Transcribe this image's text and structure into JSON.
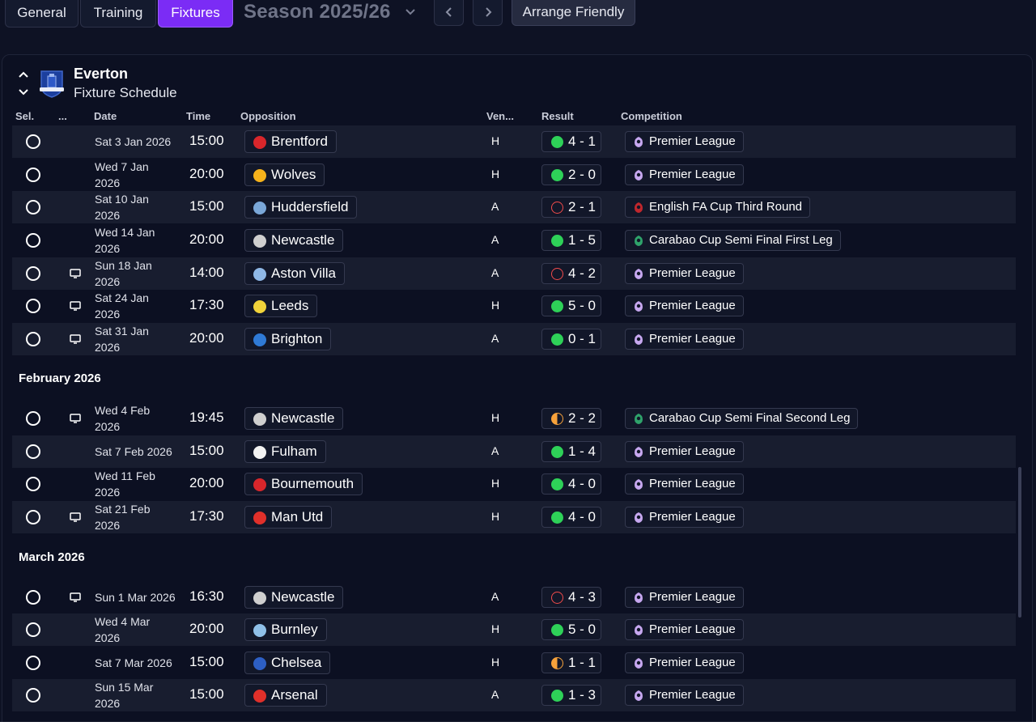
{
  "tabs": [
    {
      "label": "General"
    },
    {
      "label": "Training"
    },
    {
      "label": "Fixtures"
    }
  ],
  "season": {
    "label": "Season 2025/26"
  },
  "arrange_label": "Arrange Friendly",
  "club": {
    "name": "Everton",
    "subtitle": "Fixture Schedule"
  },
  "columns": {
    "sel": "Sel.",
    "more": "...",
    "date": "Date",
    "time": "Time",
    "opposition": "Opposition",
    "venue": "Ven...",
    "result": "Result",
    "competition": "Competition"
  },
  "months": {
    "feb": "February 2026",
    "mar": "March 2026"
  },
  "fixtures": [
    {
      "date1": "Sat 3 Jan 2026",
      "date2": "",
      "time": "15:00",
      "opp": "Brentford",
      "venue": "H",
      "result": "4 - 1",
      "outcome": "win",
      "comp": "Premier League",
      "tv": false,
      "badge": "#d8262b"
    },
    {
      "date1": "Wed 7 Jan",
      "date2": "2026",
      "time": "20:00",
      "opp": "Wolves",
      "venue": "H",
      "result": "2 - 0",
      "outcome": "win",
      "comp": "Premier League",
      "tv": false,
      "badge": "#f6b21b"
    },
    {
      "date1": "Sat 10 Jan",
      "date2": "2026",
      "time": "15:00",
      "opp": "Huddersfield",
      "venue": "A",
      "result": "2 - 1",
      "outcome": "loss",
      "comp": "English FA Cup Third Round",
      "tv": false,
      "badge": "#7aa7d8"
    },
    {
      "date1": "Wed 14 Jan",
      "date2": "2026",
      "time": "20:00",
      "opp": "Newcastle",
      "venue": "A",
      "result": "1 - 5",
      "outcome": "win",
      "comp": "Carabao Cup Semi Final First Leg",
      "tv": false,
      "badge": "#cfcfcf"
    },
    {
      "date1": "Sun 18 Jan",
      "date2": "2026",
      "time": "14:00",
      "opp": "Aston Villa",
      "venue": "A",
      "result": "4 - 2",
      "outcome": "loss",
      "comp": "Premier League",
      "tv": true,
      "badge": "#8fb8e6"
    },
    {
      "date1": "Sat 24 Jan",
      "date2": "2026",
      "time": "17:30",
      "opp": "Leeds",
      "venue": "H",
      "result": "5 - 0",
      "outcome": "win",
      "comp": "Premier League",
      "tv": true,
      "badge": "#f1d33a"
    },
    {
      "date1": "Sat 31 Jan",
      "date2": "2026",
      "time": "20:00",
      "opp": "Brighton",
      "venue": "A",
      "result": "0 - 1",
      "outcome": "win",
      "comp": "Premier League",
      "tv": true,
      "badge": "#2f7ad6"
    },
    {
      "date1": "Wed 4 Feb",
      "date2": "2026",
      "time": "19:45",
      "opp": "Newcastle",
      "venue": "H",
      "result": "2 - 2",
      "outcome": "draw",
      "comp": "Carabao Cup Semi Final Second Leg",
      "tv": true,
      "badge": "#cfcfcf"
    },
    {
      "date1": "Sat 7 Feb 2026",
      "date2": "",
      "time": "15:00",
      "opp": "Fulham",
      "venue": "A",
      "result": "1 - 4",
      "outcome": "win",
      "comp": "Premier League",
      "tv": false,
      "badge": "#f2f2f2"
    },
    {
      "date1": "Wed 11 Feb",
      "date2": "2026",
      "time": "20:00",
      "opp": "Bournemouth",
      "venue": "H",
      "result": "4 - 0",
      "outcome": "win",
      "comp": "Premier League",
      "tv": false,
      "badge": "#d8262b"
    },
    {
      "date1": "Sat 21 Feb",
      "date2": "2026",
      "time": "17:30",
      "opp": "Man Utd",
      "venue": "H",
      "result": "4 - 0",
      "outcome": "win",
      "comp": "Premier League",
      "tv": true,
      "badge": "#e0302a"
    },
    {
      "date1": "Sun 1 Mar 2026",
      "date2": "",
      "time": "16:30",
      "opp": "Newcastle",
      "venue": "A",
      "result": "4 - 3",
      "outcome": "loss",
      "comp": "Premier League",
      "tv": true,
      "badge": "#cfcfcf"
    },
    {
      "date1": "Wed 4 Mar",
      "date2": "2026",
      "time": "20:00",
      "opp": "Burnley",
      "venue": "H",
      "result": "5 - 0",
      "outcome": "win",
      "comp": "Premier League",
      "tv": false,
      "badge": "#8fc0e8"
    },
    {
      "date1": "Sat 7 Mar 2026",
      "date2": "",
      "time": "15:00",
      "opp": "Chelsea",
      "venue": "H",
      "result": "1 - 1",
      "outcome": "draw",
      "comp": "Premier League",
      "tv": false,
      "badge": "#2d5fc4"
    },
    {
      "date1": "Sun 15 Mar",
      "date2": "2026",
      "time": "15:00",
      "opp": "Arsenal",
      "venue": "A",
      "result": "1 - 3",
      "outcome": "win",
      "comp": "Premier League",
      "tv": false,
      "badge": "#e0302a"
    }
  ],
  "colors": {
    "accent": "#7b2cf5",
    "win": "#2ed158",
    "loss": "#f24b4b",
    "draw": "#f7a23b",
    "premier_league": "#c7a8f0",
    "fa_cup": "#c0272d",
    "carabao": "#2fa36b"
  }
}
